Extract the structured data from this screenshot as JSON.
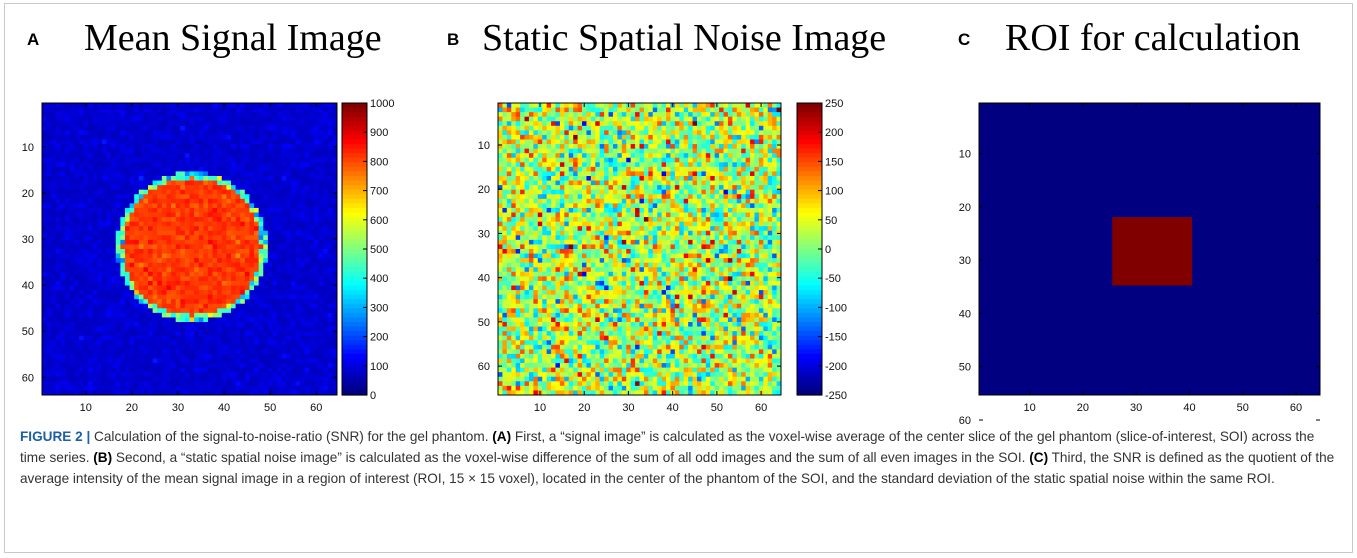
{
  "caption": {
    "figure_label": "FIGURE 2 |",
    "intro": " Calculation of the signal-to-noise-ratio (SNR) for the gel phantom. ",
    "a_label": "(A)",
    "a_text": " First, a “signal image” is calculated as the voxel-wise average of the center slice of the gel phantom (slice-of-interest, SOI) across the time series. ",
    "b_label": "(B)",
    "b_text": " Second, a “static spatial noise image” is calculated as the voxel-wise difference of the sum of all odd images and the sum of all even images in the SOI. ",
    "c_label": "(C)",
    "c_text": " Third, the SNR is defined as the quotient of the average intensity of the mean signal image in a region of interest (ROI, 15 × 15 voxel), located in the center of the phantom of the SOI, and the standard deviation of the static spatial noise within the same ROI."
  },
  "colors": {
    "colormap": "jet",
    "caption_figure_label": "#1d5fa6",
    "frame_border": "#c9c9c9"
  },
  "chart_data": [
    {
      "panel": "A",
      "title": "Mean Signal Image",
      "type": "heatmap",
      "grid_size": [
        64,
        64
      ],
      "x_ticks": [
        10,
        20,
        30,
        40,
        50,
        60
      ],
      "y_ticks": [
        10,
        20,
        30,
        40,
        50,
        60
      ],
      "xlim": [
        0.5,
        64.5
      ],
      "ylim": [
        0.5,
        64.5
      ],
      "y_reversed": true,
      "colorbar": {
        "min": 0,
        "max": 1000,
        "ticks": [
          0,
          100,
          200,
          300,
          400,
          500,
          600,
          700,
          800,
          900,
          1000
        ],
        "tick_labels": [
          "0",
          "100",
          "200",
          "300",
          "400",
          "500",
          "600",
          "700",
          "800",
          "900",
          "1000"
        ]
      },
      "background_value": 60,
      "disk": {
        "center_x": 33,
        "center_y": 32,
        "radius": 16,
        "mean_value": 820,
        "rim_value": 420
      }
    },
    {
      "panel": "B",
      "title": "Static Spatial Noise Image",
      "type": "heatmap",
      "grid_size": [
        64,
        64
      ],
      "x_ticks": [
        10,
        20,
        30,
        40,
        50,
        60
      ],
      "y_ticks": [
        10,
        20,
        30,
        40,
        50,
        60
      ],
      "xlim": [
        0.5,
        64.5
      ],
      "ylim": [
        0.5,
        64.5
      ],
      "y_reversed": true,
      "colorbar": {
        "min": -250,
        "max": 250,
        "ticks": [
          -250,
          -200,
          -150,
          -100,
          -50,
          0,
          50,
          100,
          150,
          200,
          250
        ],
        "tick_labels": [
          "-250",
          "-200",
          "-150",
          "-100",
          "-50",
          "0",
          "50",
          "100",
          "150",
          "200",
          "250"
        ]
      },
      "noise_mean": 25,
      "noise_sd": 70
    },
    {
      "panel": "C",
      "title": "ROI for calculation",
      "type": "heatmap",
      "grid_size": [
        64,
        64
      ],
      "x_ticks": [
        10,
        20,
        30,
        40,
        50,
        60
      ],
      "y_ticks": [
        10,
        20,
        30,
        40,
        50,
        60
      ],
      "xlim": [
        0.5,
        64.5
      ],
      "ylim": [
        0.5,
        64.5
      ],
      "y_reversed": true,
      "background_value": 0,
      "roi": {
        "x_start": 26,
        "x_end": 40,
        "y_start": 26,
        "y_end": 40,
        "value": 1
      }
    }
  ]
}
